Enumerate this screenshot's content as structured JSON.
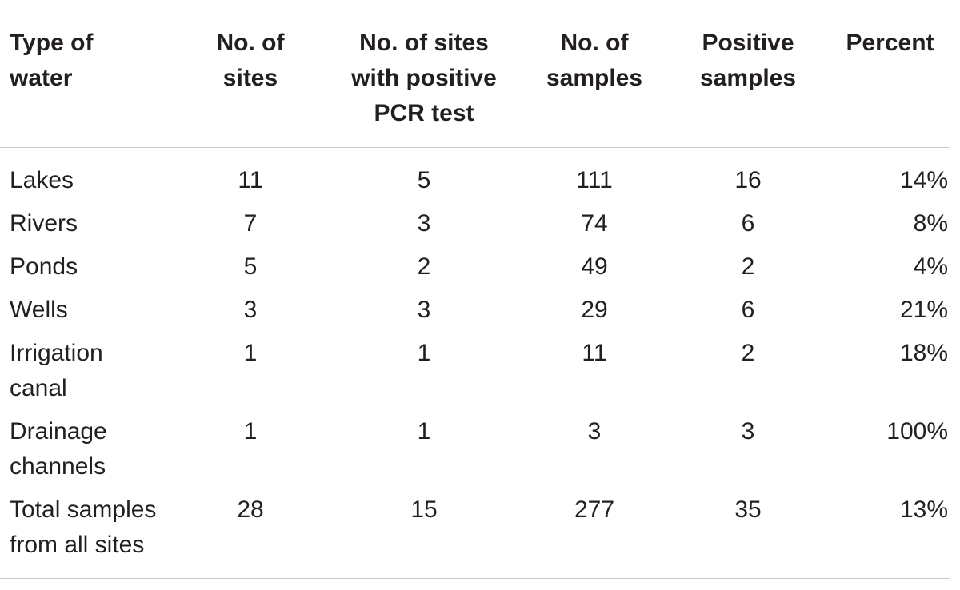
{
  "table": {
    "headers": [
      "Type of\nwater",
      "No. of\nsites",
      "No. of sites\nwith positive\nPCR test",
      "No. of\nsamples",
      "Positive\nsamples",
      "Percent"
    ],
    "rows": [
      [
        "Lakes",
        "11",
        "5",
        "111",
        "16",
        "14%"
      ],
      [
        "Rivers",
        "7",
        "3",
        "74",
        "6",
        "8%"
      ],
      [
        "Ponds",
        "5",
        "2",
        "49",
        "2",
        "4%"
      ],
      [
        "Wells",
        "3",
        "3",
        "29",
        "6",
        "21%"
      ],
      [
        "Irrigation\ncanal",
        "1",
        "1",
        "11",
        "2",
        "18%"
      ],
      [
        "Drainage\nchannels",
        "1",
        "1",
        "3",
        "3",
        "100%"
      ],
      [
        "Total samples\nfrom all sites",
        "28",
        "15",
        "277",
        "35",
        "13%"
      ]
    ]
  }
}
